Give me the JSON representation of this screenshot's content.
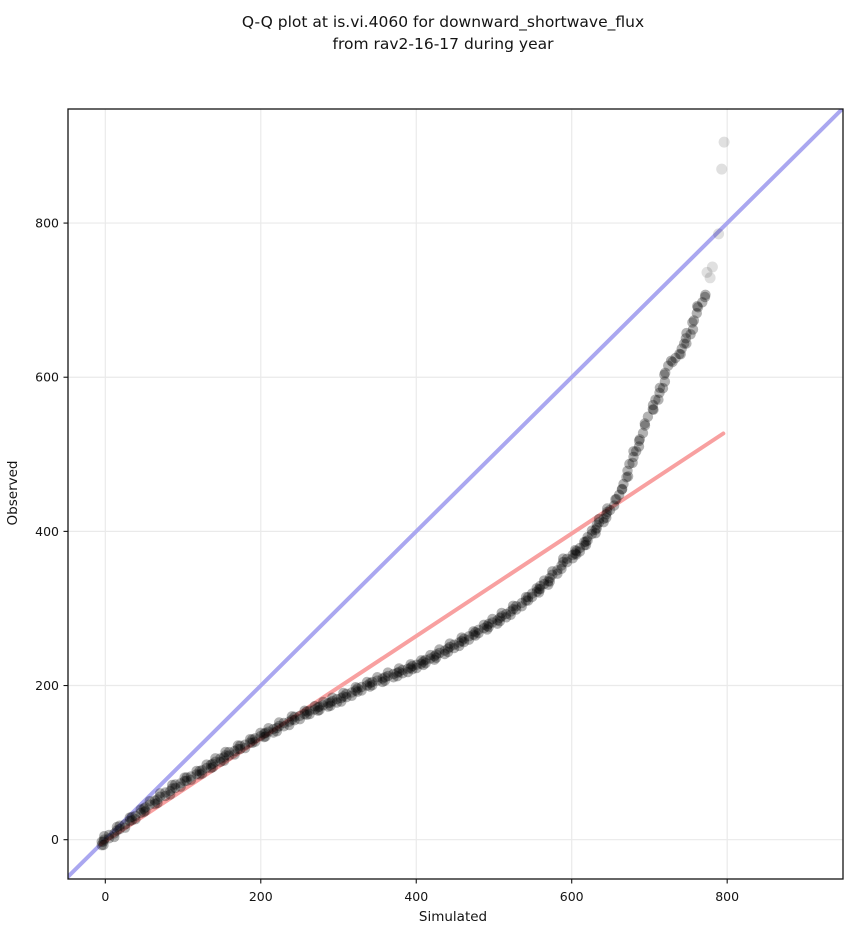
{
  "title": {
    "line1": "Q-Q plot at is.vi.4060 for downward_shortwave_flux",
    "line2": "from rav2-16-17 during year"
  },
  "axes": {
    "xlabel": "Simulated",
    "ylabel": "Observed",
    "x_ticks": [
      0,
      200,
      400,
      600,
      800
    ],
    "y_ticks": [
      0,
      200,
      400,
      600,
      800
    ]
  },
  "colors": {
    "identity_line": "#aaa7f0",
    "regression_line": "#f8a0a0",
    "marker": "#000000",
    "grid": "#eaeaea",
    "spine": "#141414",
    "background": "#ffffff"
  },
  "chart_data": {
    "type": "scatter",
    "title": "Q-Q plot at is.vi.4060 for downward_shortwave_flux from rav2-16-17 during year",
    "xlabel": "Simulated",
    "ylabel": "Observed",
    "xlim": [
      -48,
      949
    ],
    "ylim": [
      -51,
      948
    ],
    "grid": true,
    "legend": "none",
    "identity_line": {
      "from": [
        -48,
        -48
      ],
      "to": [
        948,
        948
      ],
      "color": "#aaa7f0",
      "width": 4
    },
    "regression_line": {
      "from": [
        -6,
        -6
      ],
      "to": [
        795,
        527
      ],
      "color": "#f8a0a0",
      "width": 4
    },
    "marker": {
      "color": "#000000",
      "alpha": 0.3,
      "alpha_faint": 0.12,
      "radius": 5.2
    },
    "points_quantile_curve": [
      [
        -6,
        -5
      ],
      [
        0,
        0
      ],
      [
        10,
        8
      ],
      [
        20,
        16
      ],
      [
        30,
        24
      ],
      [
        40,
        31
      ],
      [
        53,
        42
      ],
      [
        67,
        52
      ],
      [
        82,
        63
      ],
      [
        96,
        73
      ],
      [
        111,
        82
      ],
      [
        126,
        90
      ],
      [
        143,
        101
      ],
      [
        160,
        112
      ],
      [
        180,
        123
      ],
      [
        199,
        134
      ],
      [
        215,
        142
      ],
      [
        230,
        150
      ],
      [
        245,
        158
      ],
      [
        260,
        165
      ],
      [
        281,
        174
      ],
      [
        302,
        183
      ],
      [
        321,
        193
      ],
      [
        340,
        202
      ],
      [
        355,
        208
      ],
      [
        370,
        214
      ],
      [
        388,
        221
      ],
      [
        405,
        228
      ],
      [
        422,
        237
      ],
      [
        440,
        247
      ],
      [
        463,
        260
      ],
      [
        486,
        274
      ],
      [
        503,
        284
      ],
      [
        520,
        295
      ],
      [
        535,
        306
      ],
      [
        550,
        318
      ],
      [
        561,
        328
      ],
      [
        572,
        338
      ],
      [
        581,
        349
      ],
      [
        590,
        360
      ],
      [
        600,
        368
      ],
      [
        611,
        377
      ],
      [
        622,
        391
      ],
      [
        633,
        407
      ],
      [
        640,
        416
      ],
      [
        647,
        425
      ],
      [
        653,
        434
      ],
      [
        659,
        444
      ],
      [
        663,
        452
      ],
      [
        668,
        462
      ],
      [
        673,
        479
      ],
      [
        679,
        497
      ],
      [
        683,
        506
      ],
      [
        687,
        515
      ],
      [
        691,
        528
      ],
      [
        695,
        542
      ],
      [
        699,
        549
      ],
      [
        703,
        556
      ],
      [
        706,
        564
      ],
      [
        710,
        573
      ],
      [
        713,
        580
      ],
      [
        717,
        588
      ],
      [
        720,
        601
      ],
      [
        723,
        615
      ],
      [
        727,
        619
      ],
      [
        731,
        622
      ],
      [
        734,
        625
      ],
      [
        737,
        628
      ],
      [
        740,
        632
      ],
      [
        743,
        637
      ],
      [
        746,
        646
      ],
      [
        749,
        655
      ],
      [
        752,
        658
      ],
      [
        755,
        662
      ],
      [
        758,
        676
      ],
      [
        761,
        690
      ],
      [
        764,
        693
      ],
      [
        768,
        697
      ],
      [
        772,
        707
      ]
    ],
    "outlier_points": [
      [
        774,
        736
      ],
      [
        778,
        729
      ],
      [
        781,
        743
      ],
      [
        789,
        786
      ],
      [
        793,
        870
      ],
      [
        796,
        905
      ]
    ]
  }
}
